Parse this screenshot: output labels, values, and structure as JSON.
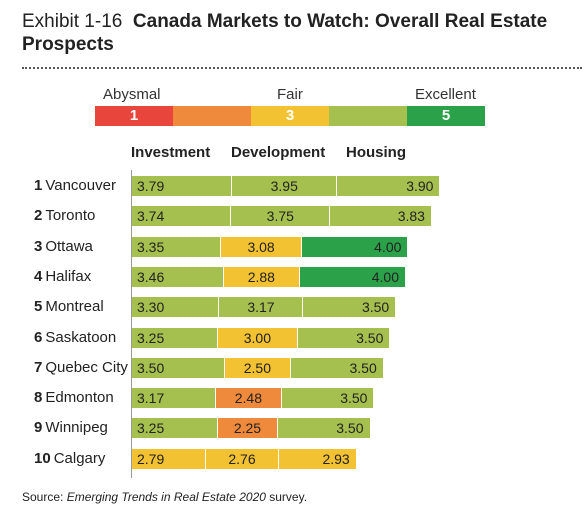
{
  "exhibit": "Exhibit 1-16",
  "title": "Canada Markets to Watch: Overall Real Estate Prospects",
  "scale": {
    "labels": {
      "low": "Abysmal",
      "mid": "Fair",
      "high": "Excellent"
    },
    "segments": [
      {
        "label": "1",
        "color": "#e8453c"
      },
      {
        "label": "",
        "color": "#ef8a3c"
      },
      {
        "label": "3",
        "color": "#f2c232"
      },
      {
        "label": "",
        "color": "#a6c04f"
      },
      {
        "label": "5",
        "color": "#2ba24a"
      }
    ]
  },
  "source": {
    "prefix": "Source: ",
    "name": "Emerging Trends in Real Estate 2020",
    "suffix": " survey."
  },
  "chart_data": {
    "type": "bar",
    "stacked": true,
    "series_names": [
      "Investment",
      "Development",
      "Housing"
    ],
    "categories": [
      "Vancouver",
      "Toronto",
      "Ottawa",
      "Halifax",
      "Montreal",
      "Saskatoon",
      "Quebec City",
      "Edmonton",
      "Winnipeg",
      "Calgary"
    ],
    "ranks": [
      "1",
      "2",
      "3",
      "4",
      "5",
      "6",
      "7",
      "8",
      "9",
      "10"
    ],
    "values": [
      [
        3.79,
        3.95,
        3.9
      ],
      [
        3.74,
        3.75,
        3.83
      ],
      [
        3.35,
        3.08,
        4.0
      ],
      [
        3.46,
        2.88,
        4.0
      ],
      [
        3.3,
        3.17,
        3.5
      ],
      [
        3.25,
        3.0,
        3.5
      ],
      [
        3.5,
        2.5,
        3.5
      ],
      [
        3.17,
        2.48,
        3.5
      ],
      [
        3.25,
        2.25,
        3.5
      ],
      [
        2.79,
        2.76,
        2.93
      ]
    ],
    "labels": [
      [
        "3.79",
        "3.95",
        "3.90"
      ],
      [
        "3.74",
        "3.75",
        "3.83"
      ],
      [
        "3.35",
        "3.08",
        "4.00"
      ],
      [
        "3.46",
        "2.88",
        "4.00"
      ],
      [
        "3.30",
        "3.17",
        "3.50"
      ],
      [
        "3.25",
        "3.00",
        "3.50"
      ],
      [
        "3.50",
        "2.50",
        "3.50"
      ],
      [
        "3.17",
        "2.48",
        "3.50"
      ],
      [
        "3.25",
        "2.25",
        "3.50"
      ],
      [
        "2.79",
        "2.76",
        "2.93"
      ]
    ],
    "colors": {
      "abysmal_to_poor": "#ef8a3c",
      "fair": "#f2c232",
      "good": "#a6c04f",
      "excellent": "#2ba24a"
    }
  }
}
